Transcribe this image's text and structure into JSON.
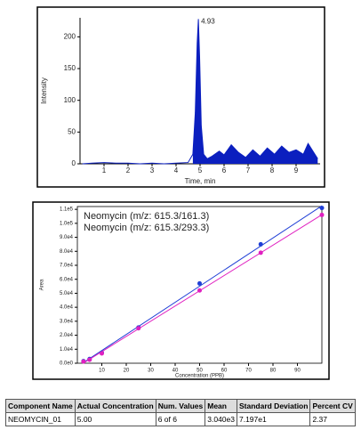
{
  "chart_data": [
    {
      "type": "line",
      "x_label": "Time, min",
      "y_label": "Intensity",
      "color": "#0b1fbf",
      "x": [
        0.1,
        0.5,
        1,
        1.5,
        2,
        2.5,
        3,
        3.5,
        4,
        4.5,
        4.7,
        4.8,
        4.88,
        4.93,
        4.98,
        5.05,
        5.15,
        5.3,
        5.5,
        5.8,
        6.0,
        6.3,
        6.6,
        6.9,
        7.2,
        7.5,
        7.8,
        8.1,
        8.4,
        8.7,
        9.0,
        9.3,
        9.5,
        9.7,
        9.9
      ],
      "values": [
        0,
        1,
        2,
        1,
        1,
        0,
        1,
        0,
        1,
        2,
        15,
        80,
        190,
        228,
        170,
        60,
        15,
        8,
        12,
        20,
        14,
        30,
        18,
        10,
        22,
        12,
        25,
        15,
        28,
        18,
        22,
        15,
        32,
        20,
        8
      ],
      "xlim": [
        0,
        10
      ],
      "ylim": [
        0,
        230
      ],
      "xticks": [
        1,
        2,
        3,
        4,
        5,
        6,
        7,
        8,
        9
      ],
      "yticks": [
        0,
        50,
        100,
        150,
        200
      ],
      "annotations": [
        {
          "x": 4.93,
          "y": 228,
          "text": "4.93"
        }
      ]
    },
    {
      "type": "scatter",
      "x_label": "Concentration (PPB)",
      "y_label": "Area",
      "x": [
        2.5,
        5,
        10,
        25,
        50,
        75,
        100
      ],
      "series": [
        {
          "name": "Neomycin (m/z: 615.3/161.3)",
          "color": "#1f3fd6",
          "values": [
            1500,
            3000,
            7500,
            25500,
            57000,
            85000,
            111000
          ]
        },
        {
          "name": "Neomycin (m/z: 615.3/293.3)",
          "color": "#e020c0",
          "values": [
            1200,
            2500,
            7000,
            25000,
            52000,
            79000,
            106000
          ]
        }
      ],
      "xlim": [
        0,
        100
      ],
      "ylim": [
        0,
        112000
      ],
      "xticks": [
        10,
        20,
        30,
        40,
        50,
        60,
        70,
        80,
        90
      ],
      "yticks": [
        {
          "value": 0,
          "label": "0.0e0"
        },
        {
          "value": 10000,
          "label": "1.0e4"
        },
        {
          "value": 20000,
          "label": "2.0e4"
        },
        {
          "value": 30000,
          "label": "3.0e4"
        },
        {
          "value": 40000,
          "label": "4.0e4"
        },
        {
          "value": 50000,
          "label": "5.0e4"
        },
        {
          "value": 60000,
          "label": "6.0e4"
        },
        {
          "value": 70000,
          "label": "7.0e4"
        },
        {
          "value": 80000,
          "label": "8.0e4"
        },
        {
          "value": 90000,
          "label": "9.0e4"
        },
        {
          "value": 100000,
          "label": "1.0e5"
        },
        {
          "value": 110000,
          "label": "1.1e5"
        }
      ]
    }
  ],
  "table": {
    "header": [
      "Component Name",
      "Actual Concentration",
      "Num. Values",
      "Mean",
      "Standard Deviation",
      "Percent CV"
    ],
    "rows": [
      [
        "NEOMYCIN_01",
        "5.00",
        "6 of 6",
        "3.040e3",
        "7.197e1",
        "2.37"
      ]
    ]
  }
}
